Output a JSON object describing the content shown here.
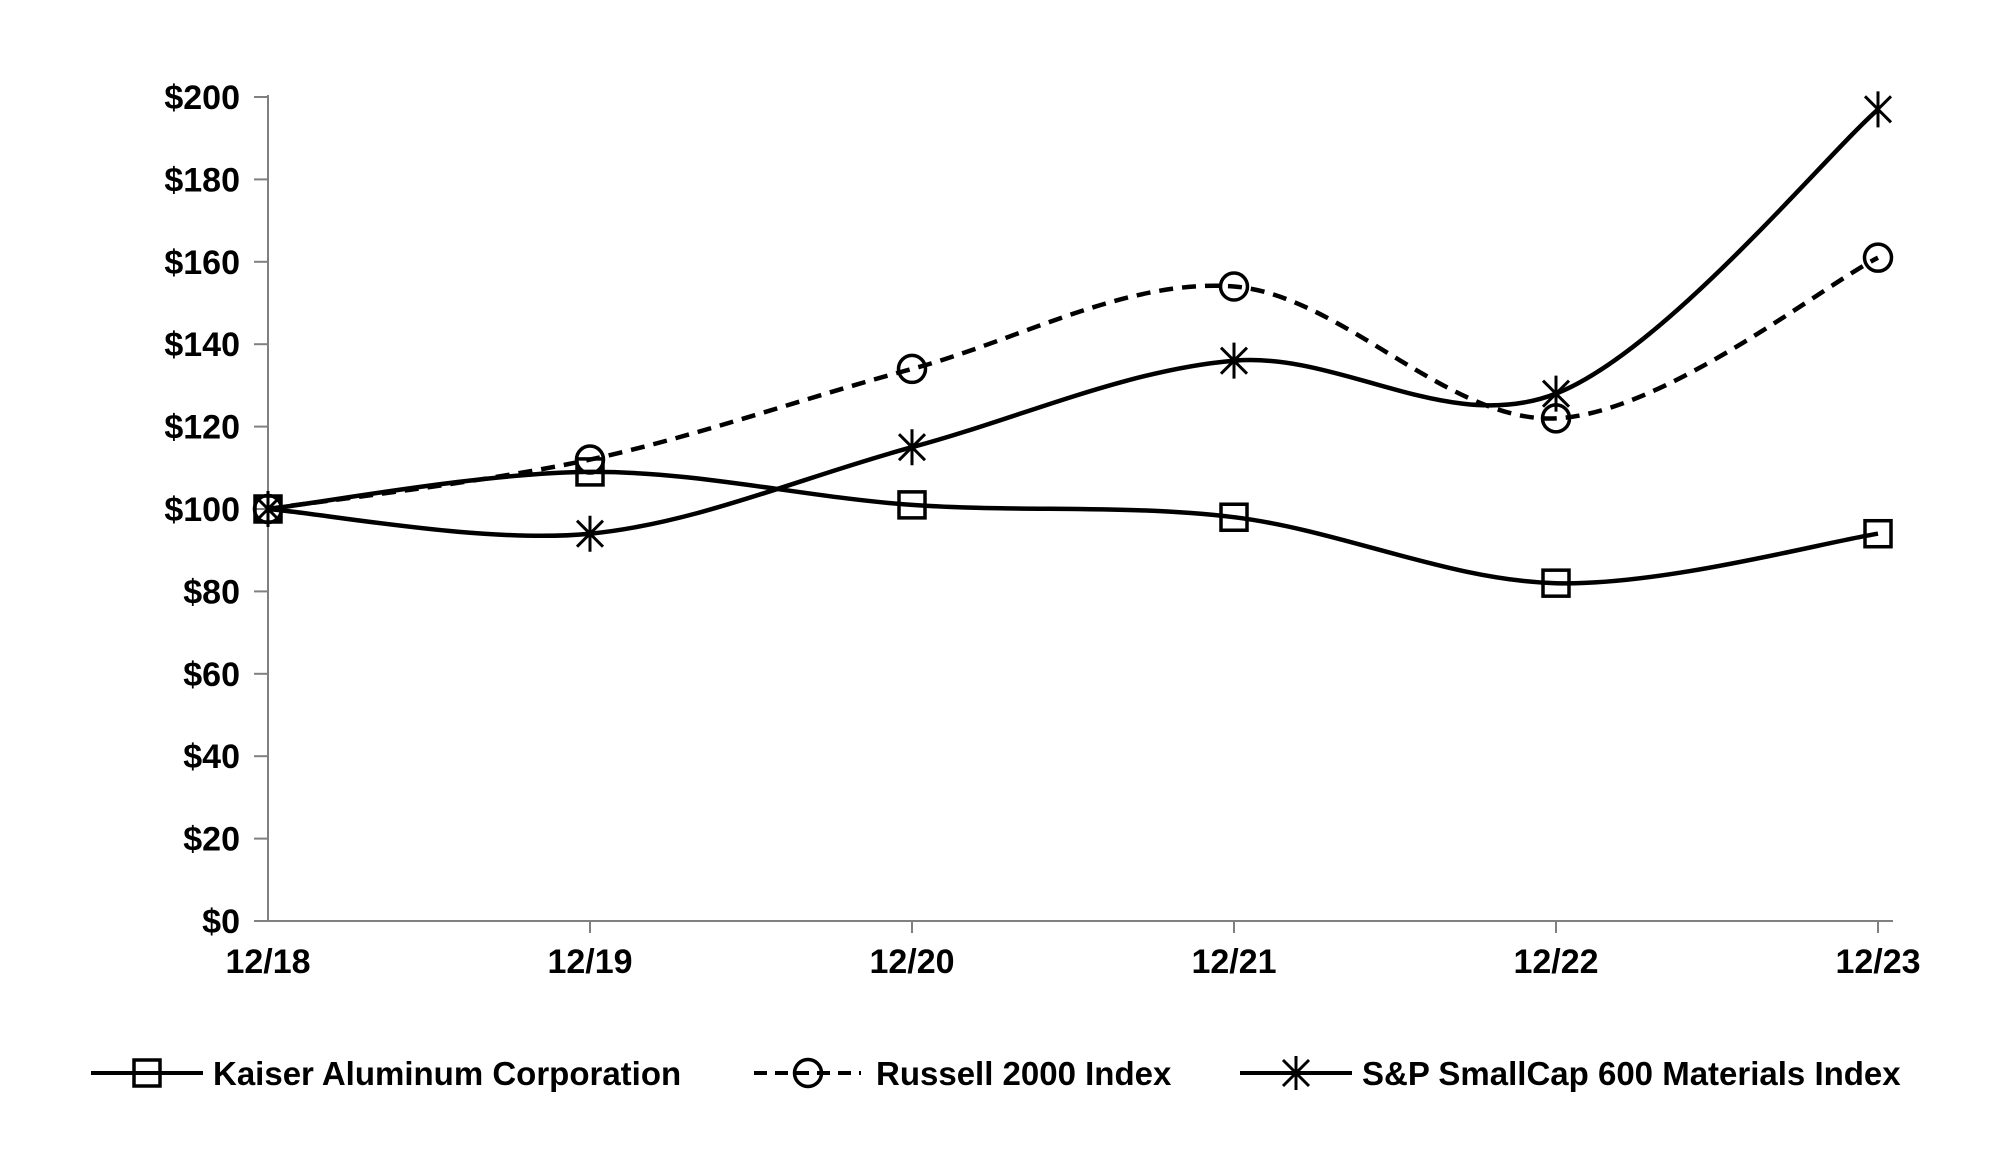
{
  "chart_data": {
    "type": "line",
    "title": "",
    "categories": [
      "12/18",
      "12/19",
      "12/20",
      "12/21",
      "12/22",
      "12/23"
    ],
    "series": [
      {
        "name": "Kaiser Aluminum Corporation",
        "marker": "square",
        "line_style": "solid",
        "values": [
          100,
          109,
          101,
          98,
          82,
          94
        ]
      },
      {
        "name": "Russell 2000 Index",
        "marker": "circle",
        "line_style": "dashed",
        "values": [
          100,
          112,
          134,
          154,
          122,
          161
        ]
      },
      {
        "name": "S&P SmallCap 600 Materials Index",
        "marker": "asterisk",
        "line_style": "solid",
        "values": [
          100,
          94,
          115,
          136,
          128,
          197
        ]
      }
    ],
    "y_axis": {
      "min": 0,
      "max": 200,
      "step": 20,
      "tick_prefix": "$",
      "tick_labels": [
        "$0",
        "$20",
        "$40",
        "$60",
        "$80",
        "$100",
        "$120",
        "$140",
        "$160",
        "$180",
        "$200"
      ]
    },
    "x_axis": {
      "tick_labels": [
        "12/18",
        "12/19",
        "12/20",
        "12/21",
        "12/22",
        "12/23"
      ]
    },
    "grid": false,
    "legend_position": "bottom",
    "line_smoothing": true,
    "colors": {
      "series_line": "#000000",
      "axis": "#808080",
      "text": "#000000",
      "background": "#ffffff"
    }
  }
}
